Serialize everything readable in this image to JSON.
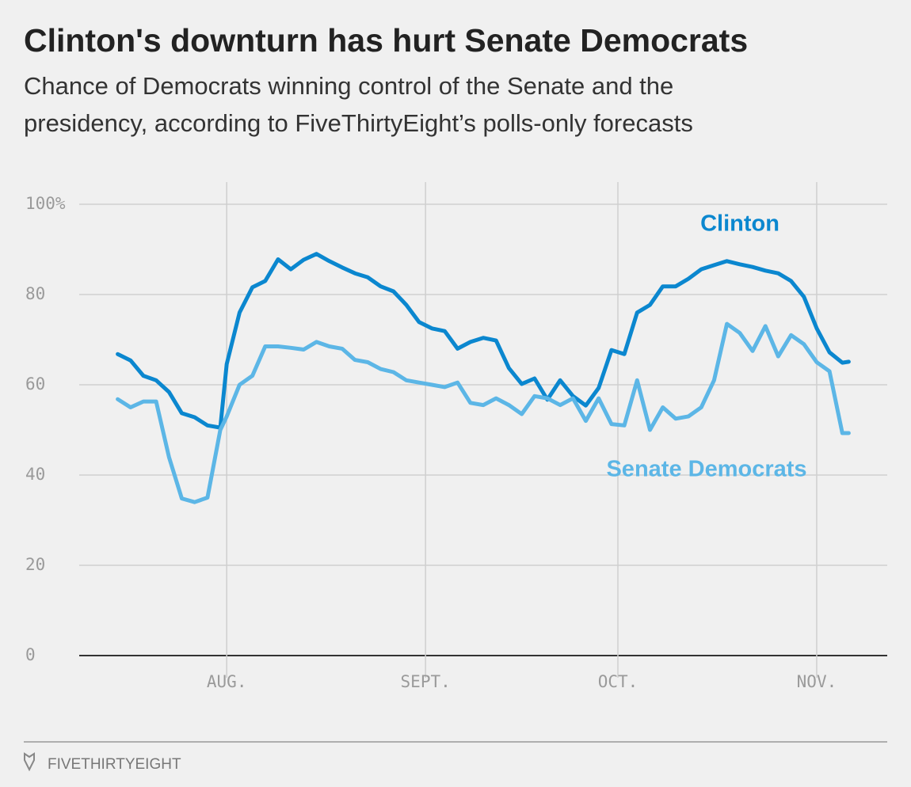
{
  "chart_data": {
    "type": "line",
    "title": "Clinton's downturn has hurt Senate Democrats",
    "subtitle": [
      "Chance of Democrats winning control of the Senate and the",
      "presidency, according to FiveThirtyEight’s polls-only forecasts"
    ],
    "footer": "FIVETHIRTYEIGHT",
    "x": [
      -17,
      -15,
      -13,
      -11,
      -9,
      -7,
      -5,
      -3,
      -1,
      0,
      2,
      4,
      6,
      8,
      10,
      12,
      14,
      16,
      18,
      20,
      22,
      24,
      26,
      28,
      30,
      32,
      34,
      36,
      38,
      40,
      42,
      44,
      46,
      48,
      50,
      52,
      54,
      56,
      58,
      60,
      62,
      64,
      66,
      68,
      70,
      72,
      74,
      76,
      78,
      80,
      82,
      84,
      86,
      88,
      90,
      92,
      94,
      96,
      97
    ],
    "series": [
      {
        "name": "Clinton",
        "color": "#0b87cf",
        "values": [
          66.8,
          65.4,
          62,
          61,
          58.4,
          53.7,
          52.8,
          51,
          50.5,
          64.6,
          76,
          81.6,
          83,
          87.8,
          85.6,
          87.7,
          89,
          87.4,
          86,
          84.7,
          83.8,
          81.8,
          80.7,
          77.7,
          73.9,
          72.5,
          71.9,
          68,
          69.5,
          70.4,
          69.8,
          63.7,
          60.2,
          61.4,
          56.7,
          61,
          57.5,
          55.4,
          59.3,
          67.7,
          66.8,
          76,
          77.7,
          81.8,
          81.8,
          83.5,
          85.6,
          86.5,
          87.4,
          86.7,
          86.1,
          85.3,
          84.7,
          83,
          79.5,
          72.5,
          67.2,
          64.9,
          65.1
        ]
      },
      {
        "name": "Senate Democrats",
        "color": "#5cb6e6",
        "values": [
          56.8,
          55,
          56.3,
          56.3,
          44,
          34.8,
          34,
          35,
          50,
          53,
          60,
          62,
          68.5,
          68.5,
          68.2,
          67.8,
          69.5,
          68.5,
          68,
          65.5,
          65,
          63.5,
          62.8,
          61,
          60.5,
          60,
          59.5,
          60.5,
          56,
          55.5,
          57,
          55.5,
          53.5,
          57.5,
          57,
          55.5,
          57,
          52,
          57,
          51.3,
          51,
          61,
          50,
          55,
          52.5,
          53,
          55,
          61,
          73.5,
          71.5,
          67.5,
          73,
          66.3,
          71,
          69,
          65,
          63,
          49.3,
          49.3
        ]
      }
    ],
    "xlim": [
      -23,
      103
    ],
    "xticks": [
      {
        "value": 0,
        "label": "AUG."
      },
      {
        "value": 31,
        "label": "SEPT."
      },
      {
        "value": 61,
        "label": "OCT."
      },
      {
        "value": 92,
        "label": "NOV."
      }
    ],
    "ylim": [
      0,
      100
    ],
    "yticks": [
      0,
      20,
      40,
      60,
      80,
      {
        "value": 100,
        "label": "100%"
      }
    ],
    "grid": true
  }
}
